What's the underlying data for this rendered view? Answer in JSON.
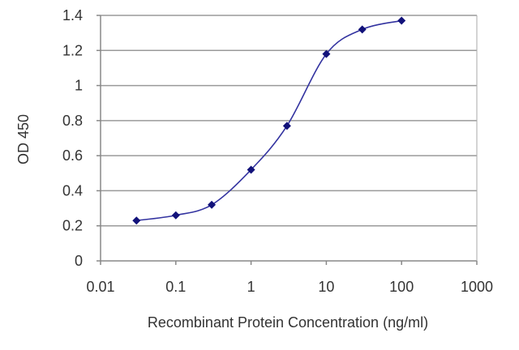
{
  "chart_data": {
    "type": "line",
    "title": "",
    "xlabel": "Recombinant Protein Concentration (ng/ml)",
    "ylabel": "OD 450",
    "x_scale": "log",
    "xlim": [
      0.01,
      1000
    ],
    "ylim": [
      0,
      1.4
    ],
    "x_ticks": [
      0.01,
      0.1,
      1,
      10,
      100,
      1000
    ],
    "x_tick_labels": [
      "0.01",
      "0.1",
      "1",
      "10",
      "100",
      "1000"
    ],
    "y_ticks": [
      0,
      0.2,
      0.4,
      0.6,
      0.8,
      1,
      1.2,
      1.4
    ],
    "y_tick_labels": [
      "0",
      "0.2",
      "0.4",
      "0.6",
      "0.8",
      "1",
      "1.2",
      "1.4"
    ],
    "grid": "horizontal",
    "legend": "none",
    "series": [
      {
        "x": [
          0.03,
          0.1,
          0.3,
          1,
          3,
          10,
          30,
          100
        ],
        "y": [
          0.23,
          0.26,
          0.32,
          0.52,
          0.77,
          1.18,
          1.32,
          1.37
        ],
        "color": "#3333a0",
        "marker": "diamond",
        "marker_color": "#12127a"
      }
    ],
    "plot_background": "#ffffff",
    "gridline_color": "#9a9a9a"
  }
}
